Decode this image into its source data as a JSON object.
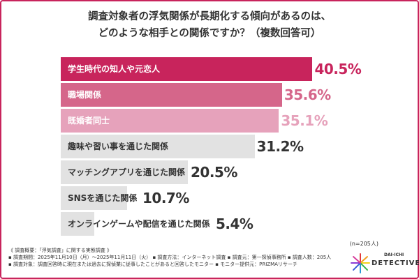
{
  "title_lines": [
    "調査対象者の浮気関係が長期化する傾向があるのは、",
    "どのような相手との関係ですか？（複数回答可）"
  ],
  "chart_data": {
    "type": "bar",
    "orientation": "horizontal",
    "categories": [
      "学生時代の知人や元恋人",
      "職場関係",
      "既婚者同士",
      "趣味や習い事を通じた関係",
      "マッチングアプリを通じた関係",
      "SNSを通じた関係",
      "オンラインゲームや配信を通じた関係"
    ],
    "values": [
      40.5,
      35.6,
      35.1,
      31.2,
      20.5,
      10.7,
      5.4
    ],
    "value_labels": [
      "40.5%",
      "35.6%",
      "35.1%",
      "31.2%",
      "20.5%",
      "10.7%",
      "5.4%"
    ],
    "bar_colors": [
      "#c8245c",
      "#d5668a",
      "#e6a2bb",
      "#e2e2e2",
      "#e2e2e2",
      "#e2e2e2",
      "#e2e2e2"
    ],
    "label_colors": [
      "#ffffff",
      "#ffffff",
      "#ffffff",
      "#333333",
      "#333333",
      "#333333",
      "#333333"
    ],
    "value_colors": [
      "#c8245c",
      "#d5668a",
      "#e6a2bb",
      "#333333",
      "#333333",
      "#333333",
      "#333333"
    ],
    "unit": "%"
  },
  "sample_size": "(n=205人)",
  "footer": {
    "heading": "《 調査概要：「浮気調査」に関する実態調査 》",
    "line1": "▪ 調査期間：2025年11月10日（月）～2025年11月11日（火） ▪ 調査方法：インターネット調査 ▪ 調査元：第一探偵事務所 ▪ 調査人数：205人",
    "line2": "▪ 調査対象：調査回答時に現在または過去に探偵業に従事したことがあると回答したモニター ▪ モニター提供元：PRIZMAリサーチ"
  },
  "logo": {
    "line1": "DAI-ICHI",
    "line2": "DETECTIVE"
  },
  "colors": {
    "accent": "#c8245c",
    "frame": "#c8245c"
  }
}
